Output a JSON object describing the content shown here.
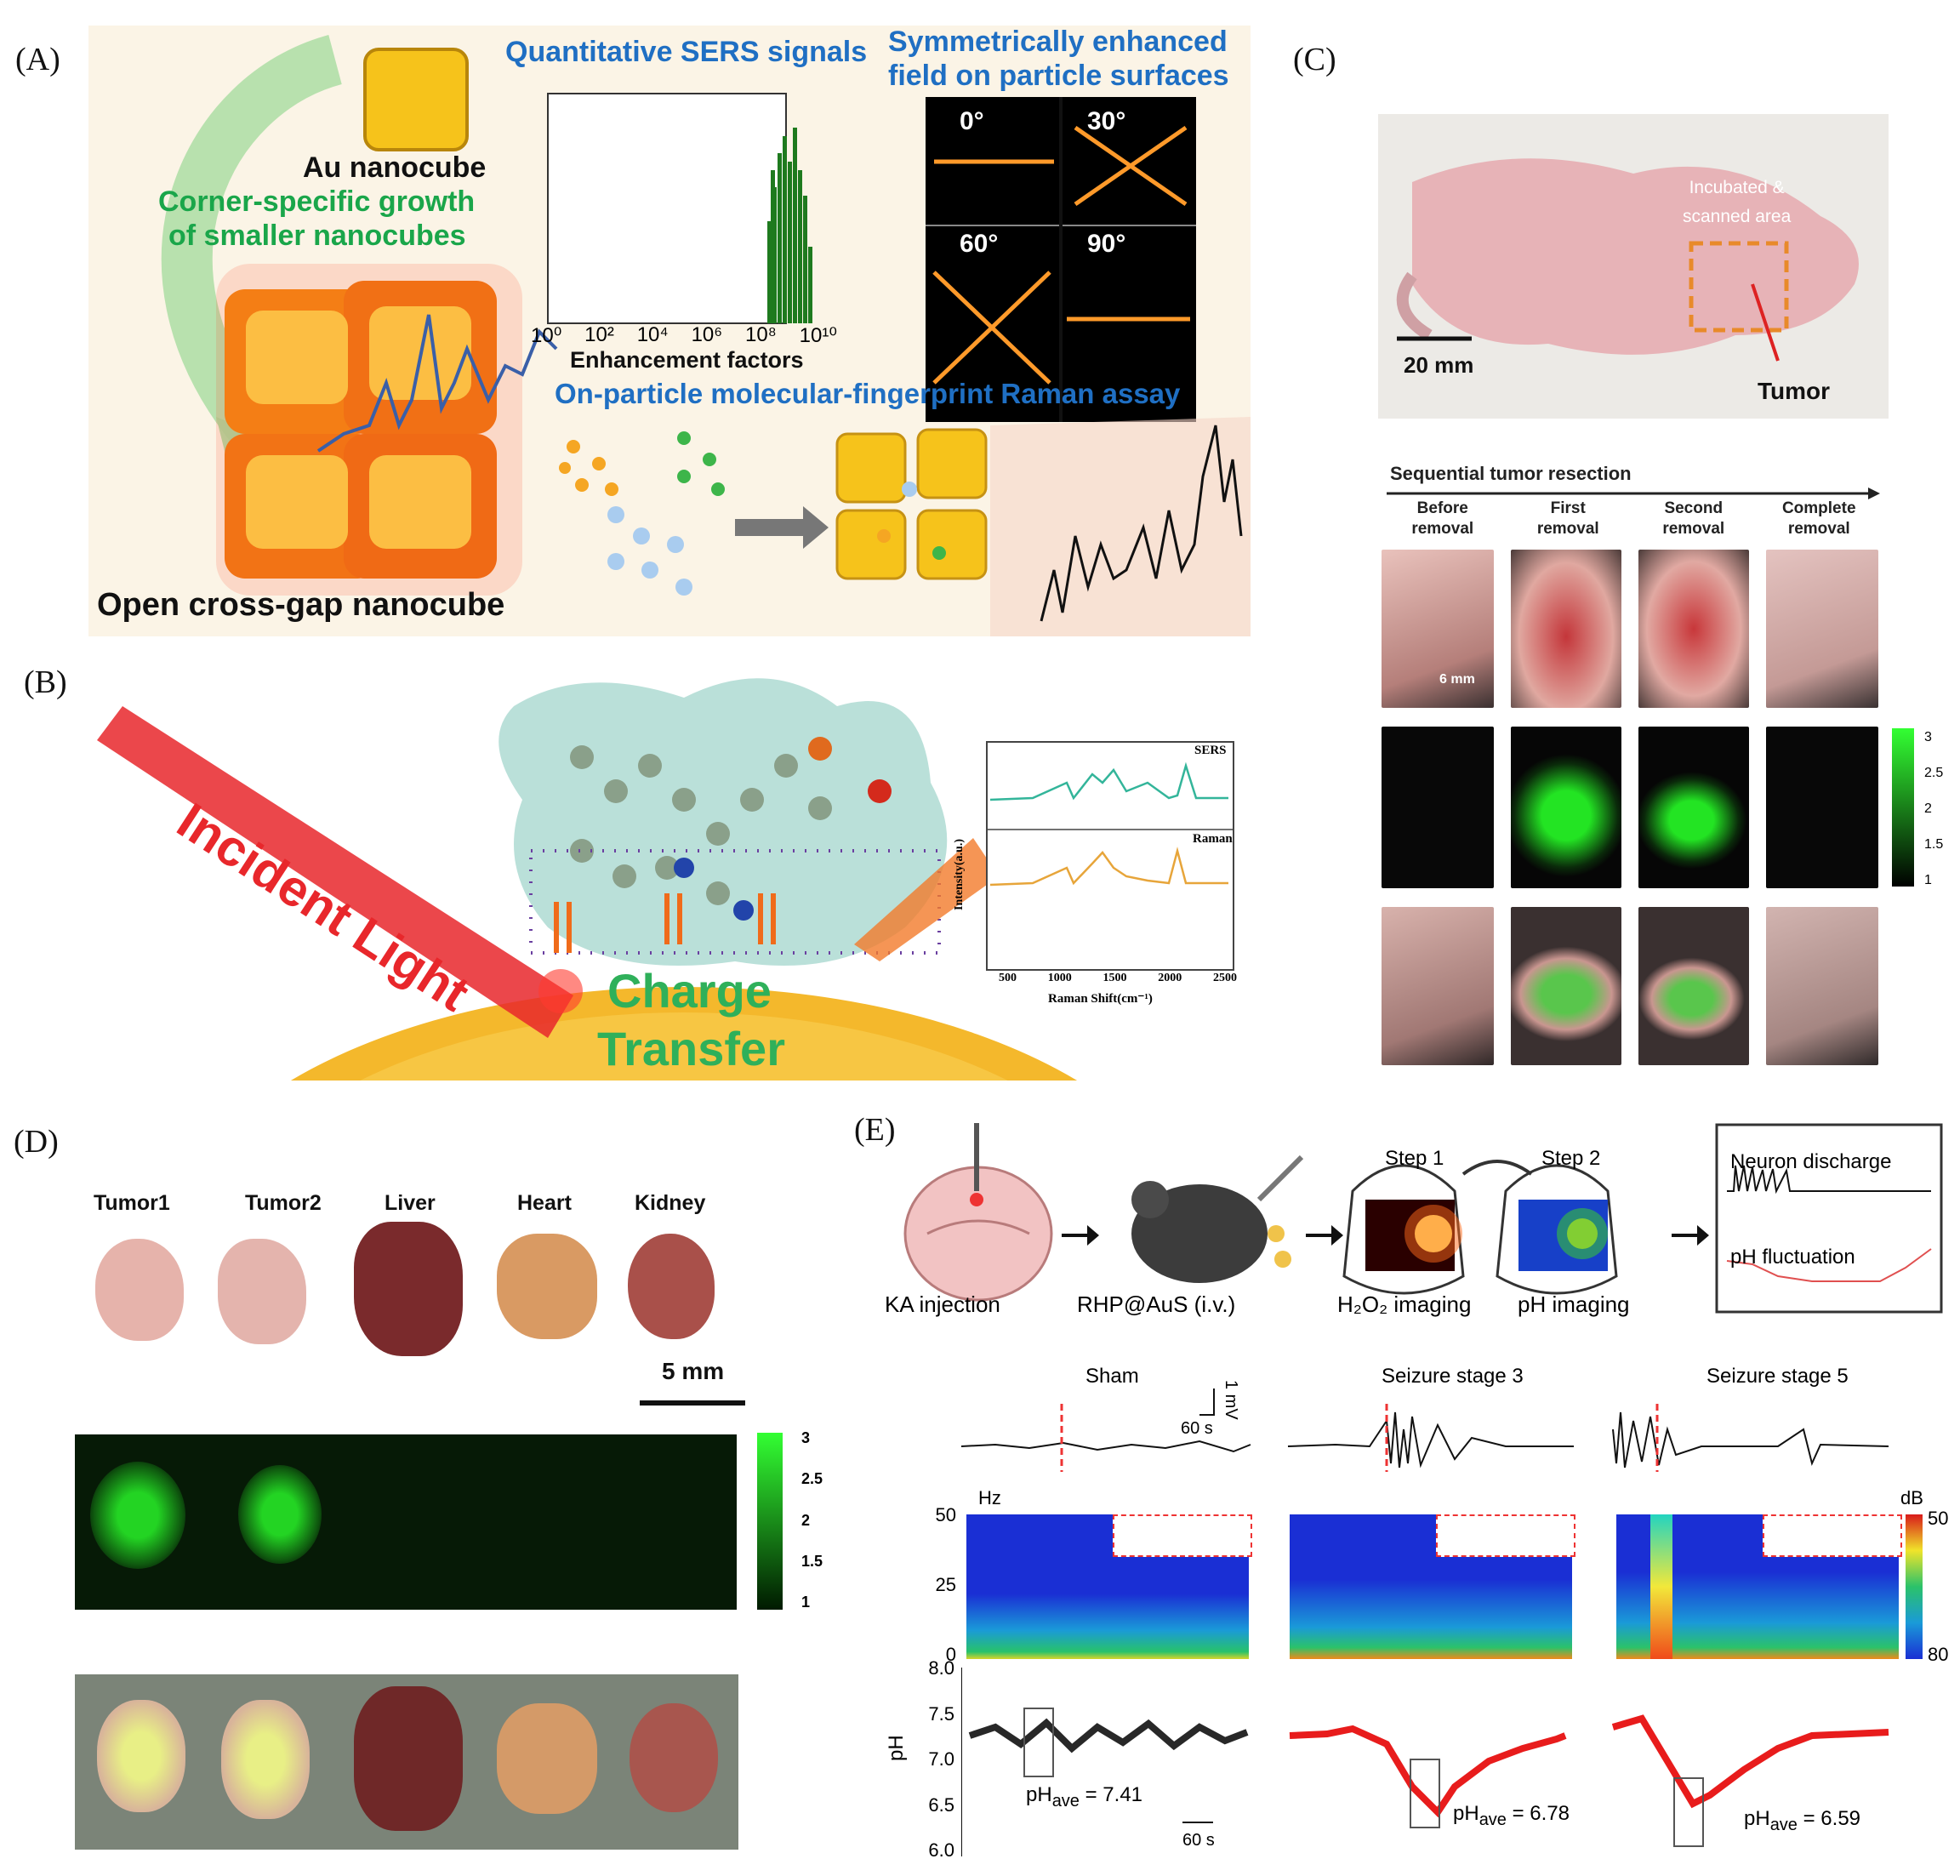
{
  "panelA": {
    "label": "(A)",
    "quantitative_title": "Quantitative SERS signals",
    "symmetric_title_1": "Symmetrically enhanced",
    "symmetric_title_2": "field on particle surfaces",
    "au_nanocube": "Au nanocube",
    "corner_growth_1": "Corner-specific growth",
    "corner_growth_2": "of smaller nanocubes",
    "open_cross_gap": "Open cross-gap nanocube",
    "ef_xlabel": "Enhancement factors",
    "ef_ticks": [
      "10⁰",
      "10²",
      "10⁴",
      "10⁶",
      "10⁸",
      "10¹⁰"
    ],
    "angles": [
      "0°",
      "30°",
      "60°",
      "90°"
    ],
    "assay_title": "On-particle molecular-fingerprint Raman assay"
  },
  "panelB": {
    "label": "(B)",
    "incident_light": "Incident Light",
    "charge": "Charge",
    "transfer": "Transfer",
    "sers_label": "SERS",
    "raman_label": "Raman",
    "ylabel": "Intensity(a.u.)",
    "xlabel": "Raman Shift(cm⁻¹)",
    "xticks": [
      "500",
      "1000",
      "1500",
      "2000",
      "2500"
    ]
  },
  "panelC": {
    "label": "(C)",
    "incubated_1": "Incubated &",
    "incubated_2": "scanned area",
    "scale": "20 mm",
    "tumor": "Tumor",
    "sequential": "Sequential tumor resection",
    "columns": [
      {
        "line1": "Before",
        "line2": "removal"
      },
      {
        "line1": "First",
        "line2": "removal"
      },
      {
        "line1": "Second",
        "line2": "removal"
      },
      {
        "line1": "Complete",
        "line2": "removal"
      }
    ],
    "small_scale": "6 mm",
    "colorbar_ticks": [
      "3",
      "2.5",
      "2",
      "1.5",
      "1"
    ]
  },
  "panelD": {
    "label": "(D)",
    "organs": [
      "Tumor1",
      "Tumor2",
      "Liver",
      "Heart",
      "Kidney"
    ],
    "scale": "5 mm",
    "colorbar_ticks": [
      "3",
      "2.5",
      "2",
      "1.5",
      "1"
    ]
  },
  "panelE": {
    "label": "(E)",
    "steps": [
      "KA injection",
      "RHP@AuS (i.v.)",
      "H₂O₂ imaging",
      "pH imaging"
    ],
    "step1": "Step 1",
    "step2": "Step 2",
    "neuron_discharge": "Neuron discharge",
    "ph_fluctuation": "pH fluctuation",
    "conditions": [
      "Sham",
      "Seizure stage 3",
      "Seizure stage 5"
    ],
    "mv_label": "1 mV",
    "time_label": "60 s",
    "hz_label": "Hz",
    "freq_ticks": [
      "50",
      "25",
      "0"
    ],
    "db_label": "dB",
    "db_ticks": [
      "50",
      "80"
    ],
    "ph_axis_label": "pH",
    "ph_ticks": [
      "8.0",
      "7.5",
      "7.0",
      "6.5",
      "6.0"
    ],
    "ph_ave": [
      "7.41",
      "6.78",
      "6.59"
    ],
    "ph_ave_prefix": "pH",
    "ph_ave_sub": "ave",
    "bottom_time": "60 s"
  }
}
